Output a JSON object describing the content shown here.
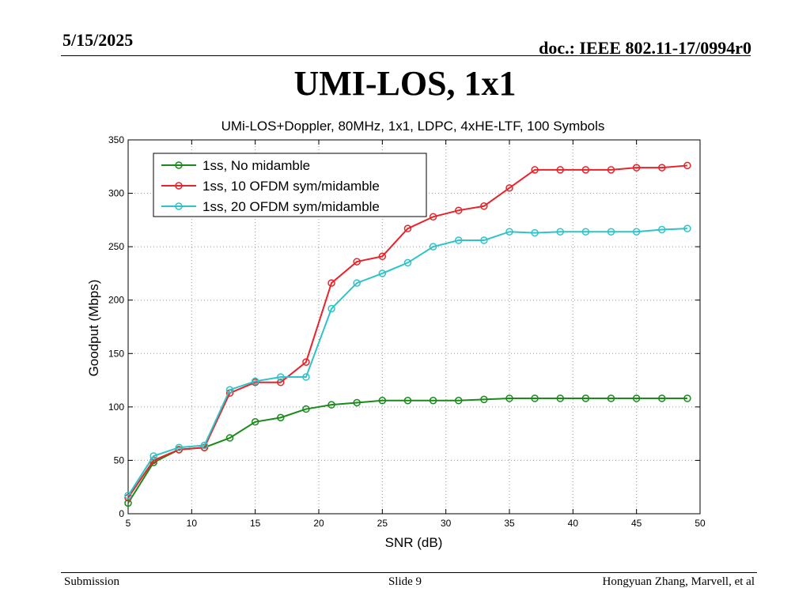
{
  "slide": {
    "date": "5/15/2025",
    "doc_id": "doc.: IEEE 802.11-17/0994r0",
    "title": "UMI-LOS, 1x1",
    "footer_left": "Submission",
    "footer_center": "Slide 9",
    "footer_right": "Hongyuan Zhang, Marvell, et al"
  },
  "chart_data": {
    "type": "line",
    "title": "UMi-LOS+Doppler, 80MHz, 1x1, LDPC, 4xHE-LTF, 100 Symbols",
    "xlabel": "SNR (dB)",
    "ylabel": "Goodput (Mbps)",
    "xlim": [
      5,
      50
    ],
    "ylim": [
      0,
      350
    ],
    "xticks": [
      5,
      10,
      15,
      20,
      25,
      30,
      35,
      40,
      45,
      50
    ],
    "yticks": [
      0,
      50,
      100,
      150,
      200,
      250,
      300,
      350
    ],
    "grid": true,
    "legend_position": "top-left",
    "x": [
      5,
      7,
      9,
      11,
      13,
      15,
      17,
      19,
      21,
      23,
      25,
      27,
      29,
      31,
      33,
      35,
      37,
      39,
      41,
      43,
      45,
      47,
      49
    ],
    "series": [
      {
        "name": "1ss, No midamble",
        "color": "#1a8a1a",
        "values": [
          10,
          48,
          60,
          62,
          71,
          86,
          90,
          98,
          102,
          104,
          106,
          106,
          106,
          106,
          107,
          108,
          108,
          108,
          108,
          108,
          108,
          108,
          108
        ]
      },
      {
        "name": "1ss, 10 OFDM sym/midamble",
        "color": "#e8232a",
        "values": [
          15,
          50,
          60,
          62,
          113,
          123,
          123,
          142,
          216,
          236,
          241,
          267,
          278,
          284,
          288,
          305,
          322,
          322,
          322,
          322,
          324,
          324,
          326
        ]
      },
      {
        "name": "1ss, 20 OFDM sym/midamble",
        "color": "#2ec3c8",
        "values": [
          17,
          54,
          62,
          64,
          116,
          124,
          128,
          128,
          192,
          216,
          225,
          235,
          250,
          256,
          256,
          264,
          263,
          264,
          264,
          264,
          264,
          266,
          267
        ]
      }
    ]
  }
}
